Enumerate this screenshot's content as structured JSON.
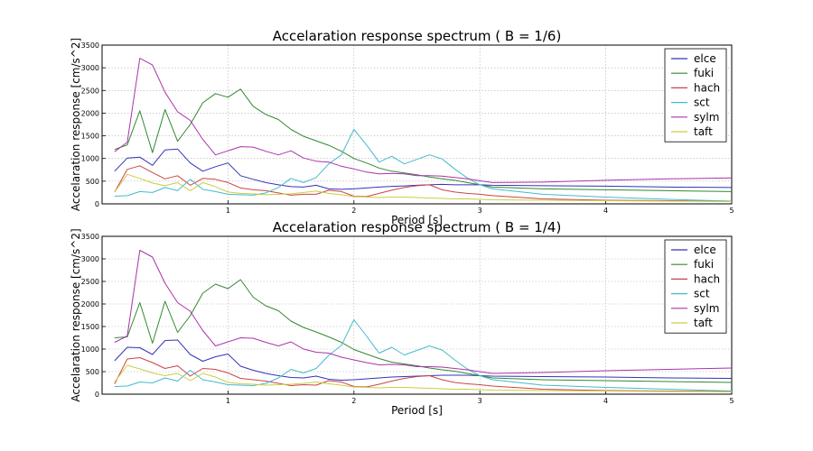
{
  "chart_data": [
    {
      "type": "line",
      "title": "Accelaration response spectrum ( B = 1/6)",
      "xlabel": "Period [s]",
      "ylabel": "Accelaration response [cm/s^2]",
      "xlim": [
        0,
        5
      ],
      "ylim": [
        0,
        3500
      ],
      "xticks": [
        "1",
        "2",
        "3",
        "4",
        "5"
      ],
      "yticks": [
        "0",
        "500",
        "1000",
        "1500",
        "2000",
        "2500",
        "3000",
        "3500"
      ],
      "grid": true,
      "legend_position": "top-right",
      "x": [
        0.1,
        0.2,
        0.3,
        0.4,
        0.5,
        0.6,
        0.7,
        0.8,
        0.9,
        1.0,
        1.1,
        1.2,
        1.3,
        1.4,
        1.5,
        1.6,
        1.7,
        1.8,
        1.9,
        2.0,
        2.1,
        2.2,
        2.3,
        2.4,
        2.5,
        2.6,
        2.7,
        2.8,
        2.9,
        3.0,
        3.1,
        3.5,
        4.0,
        4.5,
        5.0
      ],
      "series": [
        {
          "name": "elce",
          "color": "#3333bb",
          "values": [
            720,
            1010,
            1030,
            850,
            1190,
            1210,
            900,
            720,
            820,
            900,
            620,
            540,
            470,
            420,
            380,
            370,
            410,
            330,
            320,
            330,
            350,
            370,
            385,
            395,
            410,
            420,
            430,
            420,
            420,
            420,
            410,
            400,
            390,
            370,
            360
          ]
        },
        {
          "name": "fuki",
          "color": "#338833",
          "values": [
            1200,
            1300,
            2050,
            1130,
            2080,
            1380,
            1750,
            2230,
            2430,
            2350,
            2530,
            2150,
            1970,
            1860,
            1640,
            1490,
            1390,
            1290,
            1160,
            1000,
            900,
            790,
            720,
            680,
            640,
            590,
            550,
            520,
            470,
            420,
            370,
            330,
            310,
            290,
            270
          ]
        },
        {
          "name": "hach",
          "color": "#cc4444",
          "values": [
            260,
            760,
            840,
            690,
            550,
            620,
            410,
            560,
            540,
            470,
            350,
            310,
            290,
            240,
            190,
            210,
            210,
            300,
            270,
            170,
            160,
            230,
            300,
            360,
            400,
            420,
            310,
            260,
            230,
            210,
            180,
            110,
            80,
            70,
            60
          ]
        },
        {
          "name": "sct",
          "color": "#44bbcc",
          "values": [
            170,
            180,
            270,
            250,
            360,
            290,
            540,
            320,
            270,
            210,
            200,
            190,
            240,
            360,
            560,
            470,
            580,
            880,
            1080,
            1640,
            1300,
            920,
            1050,
            880,
            980,
            1080,
            990,
            770,
            570,
            420,
            330,
            210,
            150,
            100,
            60
          ]
        },
        {
          "name": "sylm",
          "color": "#aa33aa",
          "values": [
            1150,
            1360,
            3210,
            3060,
            2460,
            2030,
            1840,
            1420,
            1080,
            1170,
            1260,
            1250,
            1160,
            1080,
            1170,
            1010,
            940,
            920,
            830,
            770,
            700,
            660,
            670,
            660,
            620,
            620,
            610,
            580,
            550,
            510,
            470,
            480,
            520,
            550,
            570
          ]
        },
        {
          "name": "taft",
          "color": "#cccc44",
          "values": [
            260,
            650,
            560,
            460,
            400,
            470,
            290,
            470,
            380,
            260,
            230,
            220,
            200,
            210,
            220,
            250,
            280,
            230,
            200,
            160,
            150,
            140,
            150,
            150,
            140,
            130,
            120,
            110,
            110,
            100,
            90,
            80,
            70,
            60,
            50
          ]
        }
      ]
    },
    {
      "type": "line",
      "title": "Accelaration response spectrum ( B = 1/4)",
      "xlabel": "Period [s]",
      "ylabel": "Accelaration response [cm/s^2]",
      "xlim": [
        0,
        5
      ],
      "ylim": [
        0,
        3500
      ],
      "xticks": [
        "1",
        "2",
        "3",
        "4",
        "5"
      ],
      "yticks": [
        "0",
        "500",
        "1000",
        "1500",
        "2000",
        "2500",
        "3000",
        "3500"
      ],
      "grid": true,
      "legend_position": "top-right",
      "x": [
        0.1,
        0.2,
        0.3,
        0.4,
        0.5,
        0.6,
        0.7,
        0.8,
        0.9,
        1.0,
        1.1,
        1.2,
        1.3,
        1.4,
        1.5,
        1.6,
        1.7,
        1.8,
        1.9,
        2.0,
        2.1,
        2.2,
        2.3,
        2.4,
        2.5,
        2.6,
        2.7,
        2.8,
        2.9,
        3.0,
        3.1,
        3.5,
        4.0,
        4.5,
        5.0
      ],
      "series": [
        {
          "name": "elce",
          "color": "#3333bb",
          "values": [
            740,
            1040,
            1030,
            880,
            1190,
            1200,
            880,
            730,
            830,
            890,
            620,
            530,
            460,
            410,
            370,
            360,
            400,
            330,
            310,
            320,
            340,
            360,
            380,
            390,
            400,
            410,
            420,
            420,
            420,
            410,
            400,
            390,
            380,
            360,
            350
          ]
        },
        {
          "name": "fuki",
          "color": "#338833",
          "values": [
            1250,
            1270,
            2030,
            1130,
            2060,
            1370,
            1740,
            2240,
            2440,
            2340,
            2540,
            2150,
            1960,
            1850,
            1620,
            1480,
            1380,
            1270,
            1150,
            990,
            890,
            790,
            710,
            670,
            630,
            580,
            540,
            510,
            460,
            410,
            360,
            320,
            300,
            280,
            260
          ]
        },
        {
          "name": "hach",
          "color": "#cc4444",
          "values": [
            230,
            780,
            810,
            700,
            570,
            630,
            400,
            570,
            550,
            470,
            350,
            320,
            290,
            240,
            190,
            210,
            200,
            300,
            270,
            170,
            160,
            220,
            290,
            350,
            390,
            410,
            320,
            260,
            230,
            210,
            180,
            110,
            80,
            70,
            60
          ]
        },
        {
          "name": "sct",
          "color": "#44bbcc",
          "values": [
            170,
            180,
            270,
            250,
            360,
            290,
            530,
            320,
            270,
            210,
            200,
            190,
            240,
            360,
            550,
            470,
            570,
            860,
            1080,
            1650,
            1290,
            910,
            1040,
            870,
            970,
            1070,
            980,
            760,
            560,
            410,
            320,
            200,
            150,
            110,
            70
          ]
        },
        {
          "name": "sylm",
          "color": "#aa33aa",
          "values": [
            1150,
            1290,
            3190,
            3040,
            2460,
            2030,
            1840,
            1410,
            1070,
            1160,
            1250,
            1240,
            1150,
            1070,
            1160,
            1000,
            930,
            910,
            820,
            760,
            700,
            650,
            660,
            650,
            610,
            610,
            600,
            570,
            540,
            500,
            460,
            480,
            520,
            550,
            580
          ]
        },
        {
          "name": "taft",
          "color": "#cccc44",
          "values": [
            270,
            640,
            560,
            470,
            410,
            460,
            300,
            460,
            380,
            260,
            230,
            220,
            200,
            210,
            220,
            240,
            270,
            230,
            200,
            160,
            150,
            140,
            150,
            150,
            140,
            130,
            120,
            110,
            110,
            100,
            90,
            80,
            70,
            60,
            50
          ]
        }
      ]
    }
  ]
}
